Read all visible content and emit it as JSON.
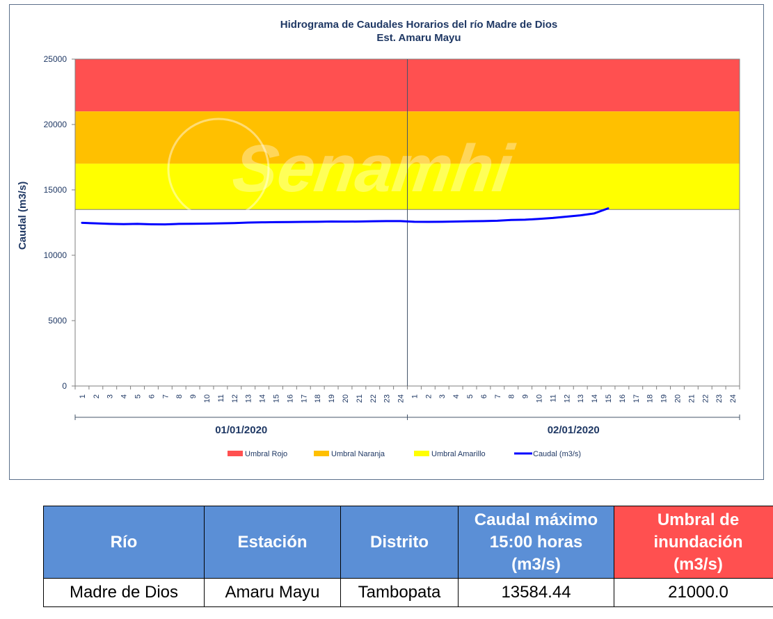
{
  "chart_data": {
    "type": "line",
    "title": "Hidrograma de Caudales Horarios del río Madre de Dios",
    "subtitle": "Est. Amaru Mayu",
    "ylabel": "Caudal (m3/s)",
    "ylim": [
      0,
      25000
    ],
    "yticks": [
      0,
      5000,
      10000,
      15000,
      20000,
      25000
    ],
    "x_tick_labels": [
      "1",
      "2",
      "3",
      "4",
      "5",
      "6",
      "7",
      "8",
      "9",
      "10",
      "11",
      "12",
      "13",
      "14",
      "15",
      "16",
      "17",
      "18",
      "19",
      "20",
      "21",
      "22",
      "23",
      "24",
      "1",
      "2",
      "3",
      "4",
      "5",
      "6",
      "7",
      "8",
      "9",
      "10",
      "11",
      "12",
      "13",
      "14",
      "15",
      "16",
      "17",
      "18",
      "19",
      "20",
      "21",
      "22",
      "23",
      "24"
    ],
    "date_groups": [
      "01/01/2020",
      "02/01/2020"
    ],
    "thresholds": [
      {
        "name": "Umbral Rojo",
        "from": 21000,
        "to": 25000,
        "color": "#ff5050"
      },
      {
        "name": "Umbral Naranja",
        "from": 17000,
        "to": 21000,
        "color": "#ffc000"
      },
      {
        "name": "Umbral Amarillo",
        "from": 13500,
        "to": 17000,
        "color": "#ffff00"
      }
    ],
    "series": [
      {
        "name": "Caudal (m3/s)",
        "color": "#0000ff",
        "values": [
          12480,
          12440,
          12400,
          12380,
          12400,
          12370,
          12360,
          12400,
          12410,
          12420,
          12440,
          12460,
          12500,
          12520,
          12530,
          12540,
          12550,
          12560,
          12580,
          12570,
          12580,
          12600,
          12610,
          12610,
          12560,
          12550,
          12560,
          12580,
          12600,
          12610,
          12640,
          12700,
          12720,
          12780,
          12850,
          12950,
          13050,
          13200,
          13584.44
        ]
      }
    ],
    "legend_position": "bottom",
    "watermark": "Senamhi"
  },
  "table": {
    "headers": {
      "rio": "Río",
      "estacion": "Estación",
      "distrito": "Distrito",
      "caudal_max": [
        "Caudal máximo",
        "15:00 horas",
        "(m3/s)"
      ],
      "umbral": [
        "Umbral de",
        "inundación",
        "(m3/s)"
      ]
    },
    "row": {
      "rio": "Madre de Dios",
      "estacion": "Amaru Mayu",
      "distrito": "Tambopata",
      "caudal_max": "13584.44",
      "umbral": "21000.0"
    }
  }
}
